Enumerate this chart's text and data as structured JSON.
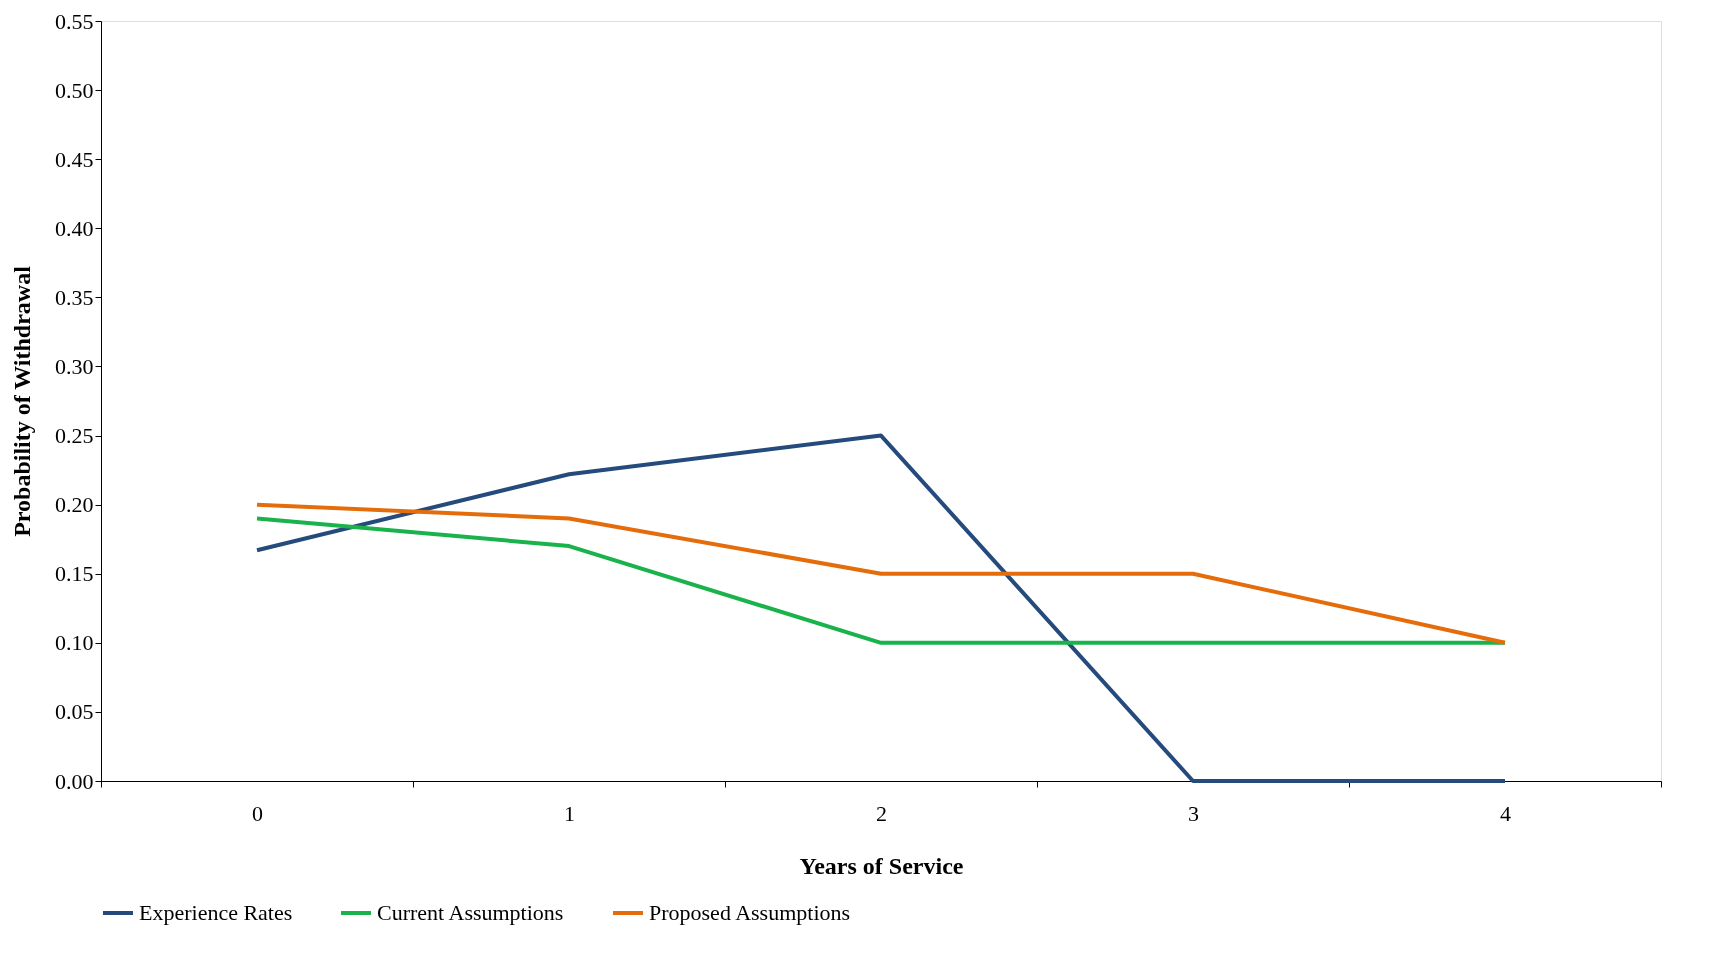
{
  "chart_data": {
    "type": "line",
    "xlabel": "Years of Service",
    "ylabel": "Probability of Withdrawal",
    "categories": [
      "0",
      "1",
      "2",
      "3",
      "4"
    ],
    "series": [
      {
        "name": "Experience Rates",
        "color": "#254a7c",
        "values": [
          0.167,
          0.222,
          0.25,
          0,
          0
        ]
      },
      {
        "name": "Current Assumptions",
        "color": "#19b24b",
        "values": [
          0.19,
          0.17,
          0.1,
          0.1,
          0.1
        ]
      },
      {
        "name": "Proposed Assumptions",
        "color": "#e46c0a",
        "values": [
          0.2,
          0.19,
          0.15,
          0.15,
          0.1
        ]
      }
    ],
    "ylim": [
      0,
      0.55
    ],
    "yticks": [
      {
        "value": 0,
        "label": "0.00"
      },
      0.05,
      {
        "value": 0.1,
        "label": "0.10"
      },
      0.15,
      {
        "value": 0.2,
        "label": "0.20"
      },
      0.25,
      {
        "value": 0.3,
        "label": "0.30"
      },
      0.35,
      {
        "value": 0.4,
        "label": "0.40"
      },
      0.45,
      {
        "value": 0.5,
        "label": "0.50"
      },
      0.55
    ],
    "grid": false,
    "legend": "bottom",
    "marker": "none",
    "line_style": "solid"
  }
}
